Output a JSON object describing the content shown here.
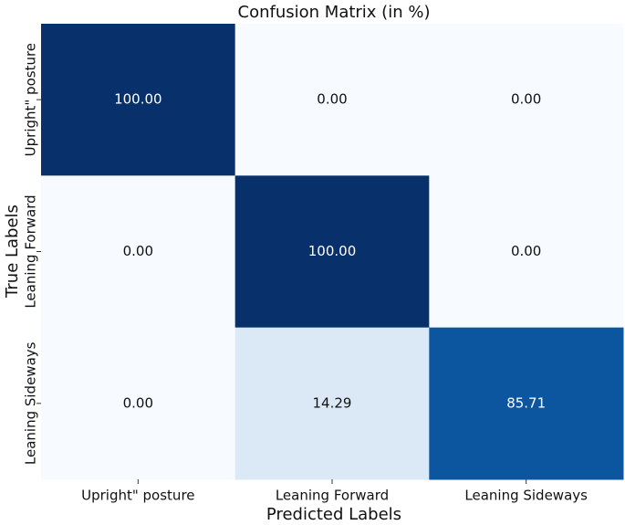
{
  "chart_data": {
    "type": "heatmap",
    "title": "Confusion Matrix (in %)",
    "x_label": "Predicted Labels",
    "y_label": "True Labels",
    "x_categories": [
      "Upright\" posture",
      "Leaning Forward",
      "Leaning Sideways"
    ],
    "y_categories": [
      "Upright\" posture",
      "Leaning Forward",
      "Leaning Sideways"
    ],
    "values": [
      [
        100,
        0,
        0
      ],
      [
        0,
        100,
        0
      ],
      [
        0,
        14.29,
        85.71
      ]
    ],
    "value_labels": [
      [
        "100.00",
        "0.00",
        "0.00"
      ],
      [
        "0.00",
        "100.00",
        "0.00"
      ],
      [
        "0.00",
        "14.29",
        "85.71"
      ]
    ],
    "colormap": [
      "#f7fbff",
      "#deebf7",
      "#c6dbef",
      "#9ecae1",
      "#6baed6",
      "#4292c6",
      "#2171b5",
      "#08519c",
      "#08306b"
    ]
  }
}
